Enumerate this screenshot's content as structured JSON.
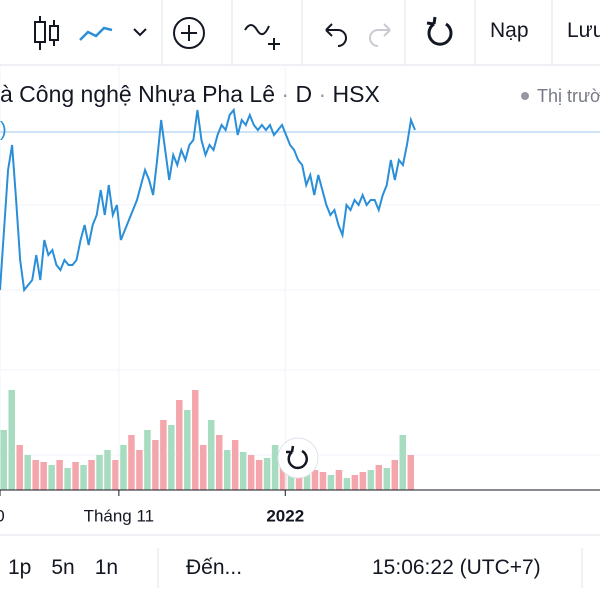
{
  "toolbar": {
    "load": "Nạp",
    "save": "Lưu"
  },
  "header": {
    "symbol": "à Công nghệ Nhựa Pha Lê",
    "interval": "D",
    "exchange": "HSX",
    "market": "Thị trườ"
  },
  "edge_label": ")",
  "chart_data": [
    {
      "type": "line",
      "color": "#2a8fd8",
      "price_line": 168,
      "values": [
        10,
        70,
        130,
        155,
        100,
        40,
        10,
        15,
        20,
        45,
        20,
        60,
        45,
        50,
        35,
        30,
        40,
        35,
        35,
        40,
        60,
        75,
        55,
        75,
        85,
        110,
        85,
        115,
        85,
        95,
        60,
        70,
        80,
        90,
        100,
        115,
        130,
        120,
        105,
        140,
        180,
        150,
        120,
        145,
        135,
        150,
        140,
        155,
        160,
        190,
        160,
        145,
        155,
        150,
        165,
        175,
        170,
        185,
        190,
        165,
        180,
        175,
        185,
        175,
        170,
        175,
        170,
        175,
        165,
        170,
        175,
        165,
        155,
        150,
        140,
        135,
        115,
        125,
        105,
        125,
        110,
        95,
        85,
        90,
        75,
        65,
        95,
        90,
        100,
        95,
        105,
        95,
        100,
        100,
        90,
        105,
        115,
        140,
        120,
        140,
        135,
        155,
        180,
        170
      ],
      "ylim": [
        0,
        200
      ],
      "xlim": [
        0,
        103
      ],
      "xticks": [
        0,
        {
          "value": 29.5,
          "label": "Tháng 11"
        },
        {
          "value": 70.8,
          "label": "2022"
        }
      ]
    },
    {
      "type": "bar",
      "ylim": [
        0,
        110
      ],
      "values": [
        60,
        100,
        45,
        35,
        30,
        28,
        25,
        30,
        22,
        28,
        25,
        30,
        35,
        40,
        30,
        45,
        55,
        40,
        60,
        50,
        70,
        65,
        90,
        80,
        100,
        45,
        70,
        55,
        40,
        50,
        38,
        35,
        30,
        32,
        45,
        28,
        30,
        25,
        40,
        20,
        18,
        15,
        20,
        12,
        15,
        18,
        20,
        25,
        22,
        30,
        55,
        35
      ],
      "colors": [
        "#a8dcc0",
        "#a8dcc0",
        "#f4a6ac",
        "#a8dcc0",
        "#f4a6ac",
        "#f4a6ac",
        "#a8dcc0",
        "#f4a6ac",
        "#a8dcc0",
        "#f4a6ac",
        "#a8dcc0",
        "#f4a6ac",
        "#a8dcc0",
        "#a8dcc0",
        "#f4a6ac",
        "#a8dcc0",
        "#f4a6ac",
        "#f4a6ac",
        "#a8dcc0",
        "#f4a6ac",
        "#f4a6ac",
        "#a8dcc0",
        "#f4a6ac",
        "#a8dcc0",
        "#f4a6ac",
        "#f4a6ac",
        "#a8dcc0",
        "#f4a6ac",
        "#a8dcc0",
        "#f4a6ac",
        "#a8dcc0",
        "#f4a6ac",
        "#f4a6ac",
        "#a8dcc0",
        "#a8dcc0",
        "#f4a6ac",
        "#a8dcc0",
        "#f4a6ac",
        "#a8dcc0",
        "#f4a6ac",
        "#f4a6ac",
        "#a8dcc0",
        "#f4a6ac",
        "#a8dcc0",
        "#f4a6ac",
        "#f4a6ac",
        "#a8dcc0",
        "#f4a6ac",
        "#a8dcc0",
        "#f4a6ac",
        "#a8dcc0",
        "#f4a6ac"
      ]
    }
  ],
  "timeframes": [
    "1p",
    "5n",
    "1n"
  ],
  "goto": "Đến...",
  "clock": "15:06:22 (UTC+7)"
}
